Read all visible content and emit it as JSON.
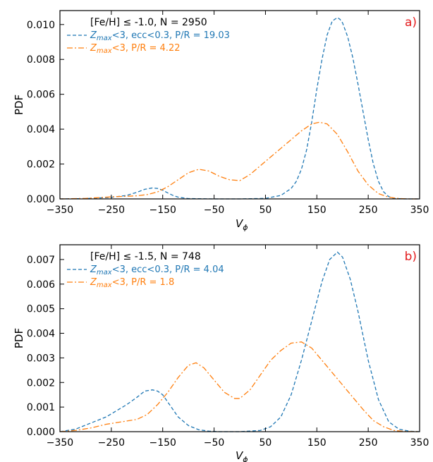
{
  "chart_data": [
    {
      "type": "line",
      "panel_label": "a)",
      "xlabel": "V_ϕ",
      "ylabel": "PDF",
      "xlim": [
        -350,
        350
      ],
      "ylim": [
        0,
        0.0108
      ],
      "xticks": [
        -350,
        -250,
        -150,
        -50,
        50,
        150,
        250,
        350
      ],
      "yticks": [
        0.0,
        0.002,
        0.004,
        0.006,
        0.008,
        0.01
      ],
      "ytick_labels": [
        "0.000",
        "0.002",
        "0.004",
        "0.006",
        "0.008",
        "0.010"
      ],
      "legend_title": "[Fe/H] ≤ -1.0, N = 2950",
      "legend_placement": "top-left",
      "series": [
        {
          "name": "Z_max<3, ecc<0.3, P/R = 19.03",
          "name_parts": {
            "sym": "Z",
            "sub": "max",
            "rest": "<3, ecc<0.3, P/R = 19.03"
          },
          "color": "#1f77b4",
          "style": "dashed",
          "x": [
            -350,
            -300,
            -250,
            -220,
            -200,
            -185,
            -170,
            -160,
            -150,
            -140,
            -130,
            -120,
            -100,
            -50,
            0,
            50,
            80,
            100,
            110,
            120,
            130,
            140,
            150,
            160,
            170,
            180,
            190,
            195,
            200,
            210,
            220,
            230,
            240,
            250,
            260,
            270,
            280,
            290,
            300,
            320,
            350
          ],
          "y": [
            0,
            2e-05,
            9e-05,
            0.0002,
            0.00038,
            0.00055,
            0.00063,
            0.0006,
            0.0005,
            0.00034,
            0.0002,
            0.0001,
            2e-05,
            0,
            0,
            3e-05,
            0.0002,
            0.0006,
            0.001,
            0.0017,
            0.0028,
            0.0044,
            0.0063,
            0.008,
            0.0094,
            0.0102,
            0.0104,
            0.0103,
            0.0101,
            0.0093,
            0.0081,
            0.0066,
            0.005,
            0.0034,
            0.002,
            0.001,
            0.0004,
            0.00013,
            3e-05,
            0,
            0
          ]
        },
        {
          "name": "Z_max<3, P/R = 4.22",
          "name_parts": {
            "sym": "Z",
            "sub": "max",
            "rest": "<3, P/R = 4.22"
          },
          "color": "#ff7f0e",
          "style": "dashdot",
          "x": [
            -350,
            -300,
            -260,
            -240,
            -220,
            -200,
            -180,
            -160,
            -140,
            -120,
            -100,
            -80,
            -60,
            -40,
            -20,
            0,
            20,
            40,
            60,
            80,
            100,
            120,
            140,
            155,
            170,
            190,
            210,
            230,
            250,
            270,
            290,
            310,
            330,
            350
          ],
          "y": [
            0,
            3e-05,
            0.0001,
            0.00013,
            0.00015,
            0.00018,
            0.00025,
            0.0004,
            0.0007,
            0.0011,
            0.0015,
            0.0017,
            0.0016,
            0.0013,
            0.0011,
            0.00105,
            0.0014,
            0.0019,
            0.0024,
            0.0029,
            0.0034,
            0.0039,
            0.0043,
            0.0044,
            0.0043,
            0.0037,
            0.0027,
            0.0016,
            0.0008,
            0.0003,
            0.0001,
            2e-05,
            0,
            0
          ]
        }
      ]
    },
    {
      "type": "line",
      "panel_label": "b)",
      "xlabel": "V_ϕ",
      "ylabel": "PDF",
      "xlim": [
        -350,
        350
      ],
      "ylim": [
        0,
        0.0076
      ],
      "xticks": [
        -350,
        -250,
        -150,
        -50,
        50,
        150,
        250,
        350
      ],
      "yticks": [
        0.0,
        0.001,
        0.002,
        0.003,
        0.004,
        0.005,
        0.006,
        0.007
      ],
      "ytick_labels": [
        "0.000",
        "0.001",
        "0.002",
        "0.003",
        "0.004",
        "0.005",
        "0.006",
        "0.007"
      ],
      "legend_title": "[Fe/H] ≤ -1.5, N = 748",
      "legend_placement": "top-left",
      "series": [
        {
          "name": "Z_max<3, ecc<0.3, P/R = 4.04",
          "name_parts": {
            "sym": "Z",
            "sub": "max",
            "rest": "<3, ecc<0.3, P/R = 4.04"
          },
          "color": "#1f77b4",
          "style": "dashed",
          "x": [
            -350,
            -320,
            -290,
            -260,
            -240,
            -220,
            -200,
            -185,
            -170,
            -160,
            -150,
            -140,
            -130,
            -120,
            -100,
            -80,
            -60,
            -40,
            0,
            40,
            60,
            80,
            100,
            120,
            140,
            160,
            175,
            190,
            200,
            215,
            230,
            250,
            270,
            290,
            310,
            330,
            350
          ],
          "y": [
            0,
            0.0001,
            0.00035,
            0.0006,
            0.00085,
            0.0011,
            0.0014,
            0.00165,
            0.0017,
            0.00165,
            0.0015,
            0.0012,
            0.0009,
            0.0006,
            0.00025,
            8e-05,
            2e-05,
            0,
            0,
            5e-05,
            0.0002,
            0.0006,
            0.0015,
            0.0029,
            0.0045,
            0.0061,
            0.007,
            0.0073,
            0.0071,
            0.0062,
            0.0049,
            0.0029,
            0.0013,
            0.0004,
            0.0001,
            2e-05,
            0
          ]
        },
        {
          "name": "Z_max<3, P/R = 1.8",
          "name_parts": {
            "sym": "Z",
            "sub": "max",
            "rest": "<3, P/R = 1.8"
          },
          "color": "#ff7f0e",
          "style": "dashdot",
          "x": [
            -350,
            -320,
            -290,
            -260,
            -230,
            -200,
            -180,
            -160,
            -140,
            -120,
            -100,
            -85,
            -70,
            -50,
            -30,
            -10,
            0,
            20,
            40,
            60,
            80,
            100,
            120,
            140,
            160,
            180,
            200,
            220,
            240,
            260,
            280,
            300,
            320,
            350
          ],
          "y": [
            0,
            5e-05,
            0.00015,
            0.0003,
            0.0004,
            0.0005,
            0.0007,
            0.0011,
            0.0016,
            0.0022,
            0.0027,
            0.0028,
            0.0026,
            0.0021,
            0.0016,
            0.00135,
            0.00135,
            0.0017,
            0.0023,
            0.0029,
            0.0033,
            0.0036,
            0.00365,
            0.0034,
            0.0029,
            0.0024,
            0.0019,
            0.0014,
            0.0009,
            0.00045,
            0.0002,
            5e-05,
            1e-05,
            0
          ]
        }
      ]
    }
  ]
}
